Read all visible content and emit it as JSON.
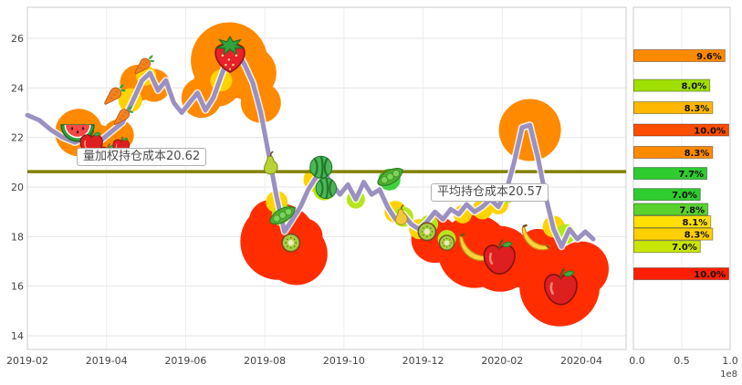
{
  "chart_data": [
    {
      "type": "line",
      "title": "",
      "x_tick_labels": [
        "2019-02",
        "2019-04",
        "2019-06",
        "2019-08",
        "2019-10",
        "2019-12",
        "2020-02",
        "2020-04"
      ],
      "y_ticks": [
        26,
        24,
        22,
        20,
        18,
        16,
        14
      ],
      "y_tick_labels": [
        "26",
        "24",
        "22",
        "20",
        "18",
        "16",
        "14"
      ],
      "ylim": [
        13.4,
        27.2
      ],
      "grid": true,
      "line_color": "#9b90c2",
      "series": [
        {
          "name": "price",
          "points": [
            [
              0,
              22.9
            ],
            [
              0.3,
              22.7
            ],
            [
              0.6,
              22.3
            ],
            [
              0.9,
              22.0
            ],
            [
              1.2,
              21.8
            ],
            [
              1.5,
              22.0
            ],
            [
              1.8,
              21.8
            ],
            [
              2.1,
              22.2
            ],
            [
              2.4,
              22.6
            ],
            [
              2.7,
              23.6
            ],
            [
              2.9,
              24.3
            ],
            [
              3.1,
              24.6
            ],
            [
              3.3,
              23.9
            ],
            [
              3.5,
              24.3
            ],
            [
              3.7,
              23.4
            ],
            [
              3.9,
              23.0
            ],
            [
              4.1,
              23.4
            ],
            [
              4.3,
              23.8
            ],
            [
              4.5,
              23.1
            ],
            [
              4.7,
              23.6
            ],
            [
              4.9,
              24.5
            ],
            [
              5.1,
              25.3
            ],
            [
              5.3,
              25.5
            ],
            [
              5.5,
              24.9
            ],
            [
              5.7,
              24.2
            ],
            [
              5.9,
              23.0
            ],
            [
              6.1,
              21.3
            ],
            [
              6.3,
              19.6
            ],
            [
              6.5,
              18.2
            ],
            [
              6.7,
              18.7
            ],
            [
              6.9,
              19.2
            ],
            [
              7.1,
              19.9
            ],
            [
              7.3,
              20.4
            ],
            [
              7.5,
              20.6
            ],
            [
              7.7,
              20.1
            ],
            [
              7.9,
              19.7
            ],
            [
              8.1,
              20.1
            ],
            [
              8.3,
              19.5
            ],
            [
              8.5,
              20.2
            ],
            [
              8.7,
              19.7
            ],
            [
              8.9,
              19.9
            ],
            [
              9.1,
              19.2
            ],
            [
              9.3,
              18.7
            ],
            [
              9.5,
              18.9
            ],
            [
              9.7,
              18.5
            ],
            [
              9.9,
              18.3
            ],
            [
              10.1,
              18.6
            ],
            [
              10.3,
              19.0
            ],
            [
              10.5,
              18.7
            ],
            [
              10.7,
              19.1
            ],
            [
              10.9,
              18.9
            ],
            [
              11.1,
              19.3
            ],
            [
              11.3,
              19.0
            ],
            [
              11.5,
              19.2
            ],
            [
              11.7,
              19.5
            ],
            [
              11.9,
              19.2
            ],
            [
              12.1,
              19.8
            ],
            [
              12.3,
              21.0
            ],
            [
              12.5,
              22.4
            ],
            [
              12.7,
              22.5
            ],
            [
              12.9,
              21.2
            ],
            [
              13.1,
              19.6
            ],
            [
              13.3,
              18.3
            ],
            [
              13.5,
              17.6
            ],
            [
              13.7,
              18.3
            ],
            [
              13.9,
              17.9
            ],
            [
              14.1,
              18.2
            ],
            [
              14.3,
              17.9
            ]
          ]
        }
      ],
      "cost_lines": [
        {
          "label": "量加权持仓成本20.62",
          "value": 20.62,
          "color": "#808000"
        },
        {
          "label": "平均持仓成本20.57",
          "value": 20.57,
          "color": "#808000"
        }
      ],
      "chip_blobs": [
        {
          "m": 1.3,
          "p": 22.2,
          "r": 26,
          "c": "#ff8a00"
        },
        {
          "m": 1.8,
          "p": 21.7,
          "r": 22,
          "c": "#ff8a00"
        },
        {
          "m": 2.3,
          "p": 22.1,
          "r": 17,
          "c": "#ff8a00"
        },
        {
          "m": 2.8,
          "p": 24.2,
          "r": 20,
          "c": "#ff8a00"
        },
        {
          "m": 3.2,
          "p": 24.1,
          "r": 18,
          "c": "#ff8a00"
        },
        {
          "m": 2.6,
          "p": 23.5,
          "r": 13,
          "c": "#ffd300"
        },
        {
          "m": 3.0,
          "p": 24.5,
          "r": 11,
          "c": "#ffd300"
        },
        {
          "m": 4.4,
          "p": 23.6,
          "r": 22,
          "c": "#ff8a00"
        },
        {
          "m": 4.8,
          "p": 24.2,
          "r": 26,
          "c": "#ff8a00"
        },
        {
          "m": 5.1,
          "p": 25.1,
          "r": 42,
          "c": "#ff8a00"
        },
        {
          "m": 5.6,
          "p": 24.6,
          "r": 30,
          "c": "#ff8a00"
        },
        {
          "m": 5.9,
          "p": 23.4,
          "r": 22,
          "c": "#ff8a00"
        },
        {
          "m": 4.9,
          "p": 24.3,
          "r": 12,
          "c": "#ffd300"
        },
        {
          "m": 6.35,
          "p": 17.8,
          "r": 42,
          "c": "#ff2d00"
        },
        {
          "m": 6.8,
          "p": 17.3,
          "r": 34,
          "c": "#ff2d00"
        },
        {
          "m": 6.15,
          "p": 18.6,
          "r": 24,
          "c": "#ff2d00"
        },
        {
          "m": 7.0,
          "p": 18.0,
          "r": 20,
          "c": "#ff2d00"
        },
        {
          "m": 6.3,
          "p": 19.4,
          "r": 12,
          "c": "#ffd300"
        },
        {
          "m": 6.45,
          "p": 18.85,
          "r": 12,
          "c": "#b5e61d"
        },
        {
          "m": 7.3,
          "p": 20.3,
          "r": 14,
          "c": "#ffd300"
        },
        {
          "m": 7.5,
          "p": 19.9,
          "r": 12,
          "c": "#b5e61d"
        },
        {
          "m": 7.45,
          "p": 20.65,
          "r": 10,
          "c": "#3fd23f"
        },
        {
          "m": 8.3,
          "p": 19.5,
          "r": 10,
          "c": "#b5e61d"
        },
        {
          "m": 9.15,
          "p": 20.3,
          "r": 12,
          "c": "#3fd23f"
        },
        {
          "m": 9.3,
          "p": 19.0,
          "r": 12,
          "c": "#ffd300"
        },
        {
          "m": 9.5,
          "p": 18.8,
          "r": 11,
          "c": "#b5e61d"
        },
        {
          "m": 9.9,
          "p": 18.3,
          "r": 11,
          "c": "#ffd300"
        },
        {
          "m": 10.15,
          "p": 18.5,
          "r": 10,
          "c": "#b5e61d"
        },
        {
          "m": 10.6,
          "p": 17.9,
          "r": 10,
          "c": "#b5e61d"
        },
        {
          "m": 10.3,
          "p": 17.9,
          "r": 26,
          "c": "#ff2d00"
        },
        {
          "m": 11.3,
          "p": 17.4,
          "r": 40,
          "c": "#ff2d00"
        },
        {
          "m": 11.95,
          "p": 17.1,
          "r": 36,
          "c": "#ff2d00"
        },
        {
          "m": 12.5,
          "p": 16.9,
          "r": 26,
          "c": "#ff2d00"
        },
        {
          "m": 12.9,
          "p": 17.5,
          "r": 22,
          "c": "#ff2d00"
        },
        {
          "m": 13.45,
          "p": 16.0,
          "r": 44,
          "c": "#ff2d00"
        },
        {
          "m": 14.0,
          "p": 16.7,
          "r": 30,
          "c": "#ff2d00"
        },
        {
          "m": 11.0,
          "p": 18.9,
          "r": 10,
          "c": "#ffd300"
        },
        {
          "m": 11.5,
          "p": 19.1,
          "r": 11,
          "c": "#ffd300"
        },
        {
          "m": 11.9,
          "p": 19.3,
          "r": 11,
          "c": "#ffd300"
        },
        {
          "m": 12.1,
          "p": 19.7,
          "r": 10,
          "c": "#b5e61d"
        },
        {
          "m": 12.7,
          "p": 22.3,
          "r": 34,
          "c": "#ff8a00"
        },
        {
          "m": 13.3,
          "p": 18.4,
          "r": 12,
          "c": "#ffd300"
        },
        {
          "m": 13.6,
          "p": 18.1,
          "r": 11,
          "c": "#b5e61d"
        }
      ],
      "stickers": [
        {
          "m": 1.27,
          "p": 22.25,
          "t": "watermelon-slice",
          "s": 40
        },
        {
          "m": 1.62,
          "p": 21.75,
          "t": "apple",
          "s": 30
        },
        {
          "m": 2.03,
          "p": 21.3,
          "t": "apple",
          "s": 26
        },
        {
          "m": 2.37,
          "p": 21.65,
          "t": "apple",
          "s": 22
        },
        {
          "m": 2.2,
          "p": 23.75,
          "t": "carrot",
          "s": 26
        },
        {
          "m": 2.42,
          "p": 22.9,
          "t": "carrot",
          "s": 24
        },
        {
          "m": 2.95,
          "p": 24.95,
          "t": "carrot",
          "s": 24
        },
        {
          "m": 5.12,
          "p": 25.35,
          "t": "strawberry",
          "s": 46
        },
        {
          "m": 6.15,
          "p": 20.95,
          "t": "pear-green",
          "s": 30
        },
        {
          "m": 6.45,
          "p": 18.85,
          "t": "peas",
          "s": 32
        },
        {
          "m": 6.66,
          "p": 17.75,
          "t": "kiwi",
          "s": 26
        },
        {
          "m": 7.42,
          "p": 20.8,
          "t": "watermelon",
          "s": 30
        },
        {
          "m": 7.55,
          "p": 19.95,
          "t": "watermelon",
          "s": 28
        },
        {
          "m": 9.17,
          "p": 20.4,
          "t": "peas",
          "s": 32
        },
        {
          "m": 9.45,
          "p": 18.85,
          "t": "pear-yellow",
          "s": 26
        },
        {
          "m": 10.1,
          "p": 18.2,
          "t": "kiwi",
          "s": 26
        },
        {
          "m": 10.6,
          "p": 17.75,
          "t": "kiwi",
          "s": 22
        },
        {
          "m": 11.3,
          "p": 17.55,
          "t": "banana",
          "s": 36
        },
        {
          "m": 11.93,
          "p": 17.15,
          "t": "apple",
          "s": 42
        },
        {
          "m": 12.86,
          "p": 17.95,
          "t": "banana",
          "s": 34
        },
        {
          "m": 13.48,
          "p": 15.95,
          "t": "apple",
          "s": 44
        }
      ]
    },
    {
      "type": "bar",
      "orientation": "horizontal",
      "x_tick_labels": [
        "0.0",
        "0.5",
        "1.0"
      ],
      "x_scale_label": "1e8",
      "xlim": [
        0,
        1.06
      ],
      "bars": [
        {
          "label": "9.6%",
          "pct": 9.6,
          "price": 25.3,
          "color": "#ff8a00"
        },
        {
          "label": "8.0%",
          "pct": 8.0,
          "price": 24.1,
          "color": "#a0e000"
        },
        {
          "label": "8.3%",
          "pct": 8.3,
          "price": 23.2,
          "color": "#ffb800"
        },
        {
          "label": "10.0%",
          "pct": 10.0,
          "price": 22.3,
          "color": "#ff4d00"
        },
        {
          "label": "8.3%",
          "pct": 8.3,
          "price": 21.4,
          "color": "#ff8a00"
        },
        {
          "label": "7.7%",
          "pct": 7.7,
          "price": 20.55,
          "color": "#2ecc2e"
        },
        {
          "label": "7.0%",
          "pct": 7.0,
          "price": 19.7,
          "color": "#2ecc2e"
        },
        {
          "label": "7.8%",
          "pct": 7.8,
          "price": 19.1,
          "color": "#5ad22e"
        },
        {
          "label": "8.1%",
          "pct": 8.1,
          "price": 18.6,
          "color": "#ffe000"
        },
        {
          "label": "8.3%",
          "pct": 8.3,
          "price": 18.1,
          "color": "#ffd000"
        },
        {
          "label": "7.0%",
          "pct": 7.0,
          "price": 17.6,
          "color": "#c8e600"
        },
        {
          "label": "10.0%",
          "pct": 10.0,
          "price": 16.5,
          "color": "#ff1e00"
        }
      ]
    }
  ]
}
